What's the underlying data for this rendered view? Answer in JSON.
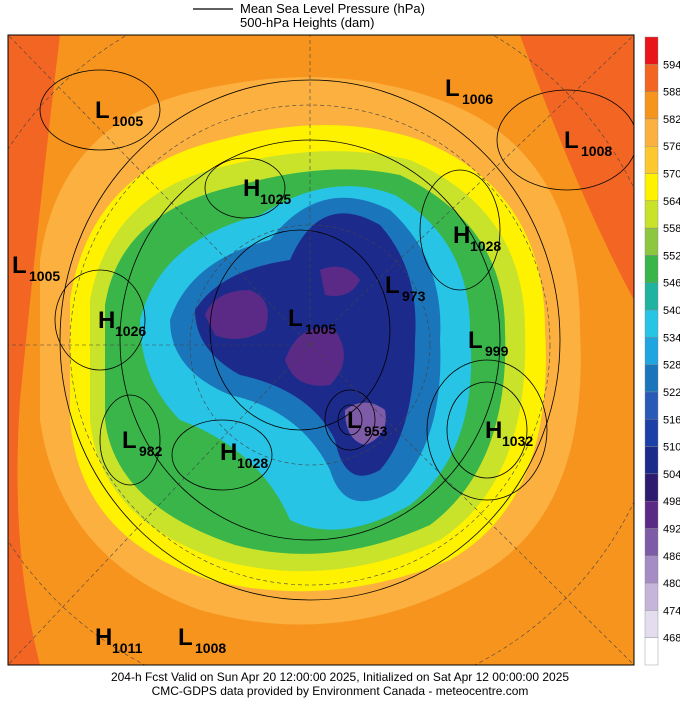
{
  "header": {
    "legend_line": "Mean Sea Level Pressure (hPa)",
    "legend_fill": "500-hPa Heights (dam)"
  },
  "colorbar": {
    "labels": [
      "594",
      "588",
      "582",
      "576",
      "570",
      "564",
      "558",
      "552",
      "546",
      "540",
      "534",
      "528",
      "522",
      "516",
      "510",
      "504",
      "498",
      "492",
      "486",
      "480",
      "474",
      "468"
    ],
    "colors": [
      "#e8161b",
      "#f26522",
      "#f7941d",
      "#fbb040",
      "#fdc82f",
      "#fff200",
      "#c9e32b",
      "#8dc63f",
      "#39b54a",
      "#1fb3a0",
      "#27c4e6",
      "#1fa5e0",
      "#1b75bb",
      "#2a5ab8",
      "#1c3fa8",
      "#1c2a8c",
      "#2e1a6e",
      "#5b2a86",
      "#7e5ba7",
      "#a58cc4",
      "#c5b5da",
      "#e4dcef",
      "#ffffff"
    ]
  },
  "centers": [
    {
      "type": "L",
      "value": "1005"
    },
    {
      "type": "L",
      "value": "1006"
    },
    {
      "type": "L",
      "value": "1008"
    },
    {
      "type": "H",
      "value": "1025"
    },
    {
      "type": "H",
      "value": "1028"
    },
    {
      "type": "L",
      "value": "1005"
    },
    {
      "type": "L",
      "value": "973"
    },
    {
      "type": "H",
      "value": "1026"
    },
    {
      "type": "L",
      "value": "1005"
    },
    {
      "type": "L",
      "value": "999"
    },
    {
      "type": "L",
      "value": "953"
    },
    {
      "type": "H",
      "value": "1032"
    },
    {
      "type": "L",
      "value": "982"
    },
    {
      "type": "H",
      "value": "1028"
    },
    {
      "type": "H",
      "value": "1011"
    },
    {
      "type": "L",
      "value": "1008"
    }
  ],
  "footer": {
    "line1": "204-h Fcst Valid on Sun Apr 20 12:00:00 2025, Initialized on Sat Apr 12 00:00:00 2025",
    "line2": "CMC-GDPS data provided by Environment Canada - meteocentre.com"
  }
}
